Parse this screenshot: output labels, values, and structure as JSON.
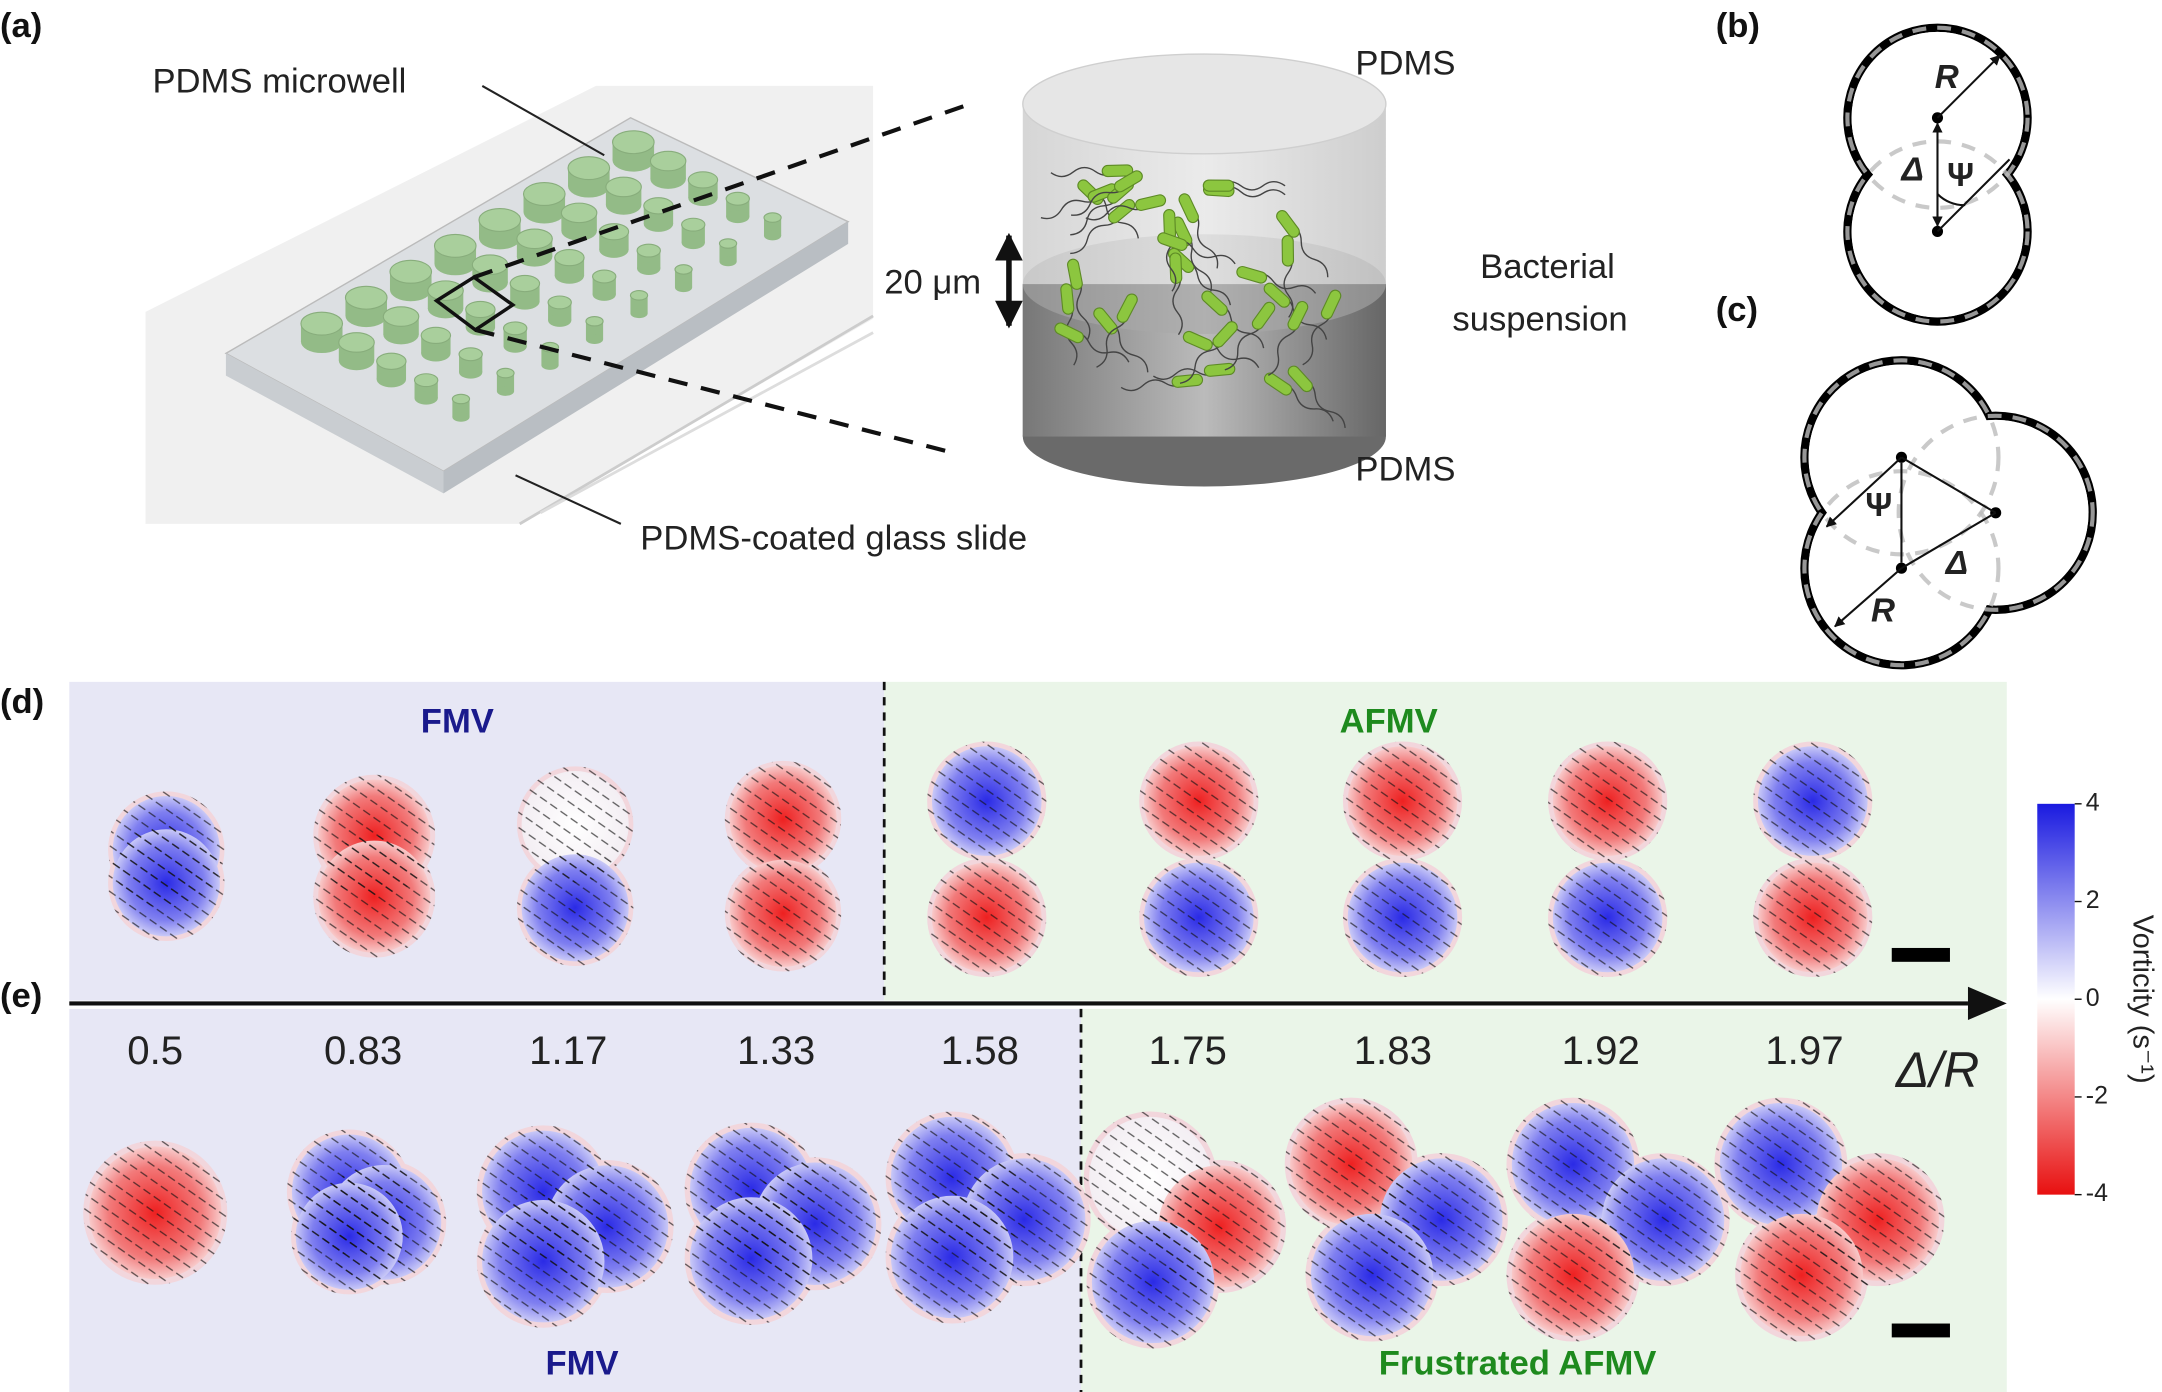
{
  "panel_labels": [
    "(a)",
    "(b)",
    "(c)",
    "(d)",
    "(e)"
  ],
  "panel_a": {
    "microwell_label": "PDMS microwell",
    "slide_label": "PDMS-coated glass slide",
    "top_label": "PDMS",
    "bottom_label": "PDMS",
    "height_label": "20 μm",
    "suspension_label": [
      "Bacterial",
      "suspension"
    ]
  },
  "panel_b": {
    "labels": [
      "R",
      "Δ",
      "Ψ"
    ]
  },
  "panel_c": {
    "labels": [
      "Ψ",
      "Δ",
      "R"
    ]
  },
  "panel_d": {
    "left_label": "FMV",
    "right_label": "AFMV"
  },
  "axis": {
    "label": "Δ/R",
    "values": [
      "0.5",
      "0.83",
      "1.17",
      "1.33",
      "1.58",
      "1.75",
      "1.83",
      "1.92",
      "1.97"
    ]
  },
  "panel_e": {
    "left_label": "FMV",
    "right_label": "Frustrated AFMV"
  },
  "colorbar": {
    "label": "Vorticity (s⁻¹)",
    "lim": [
      -4,
      4
    ],
    "ticks": [
      4,
      2,
      0,
      -2,
      -4
    ]
  }
}
